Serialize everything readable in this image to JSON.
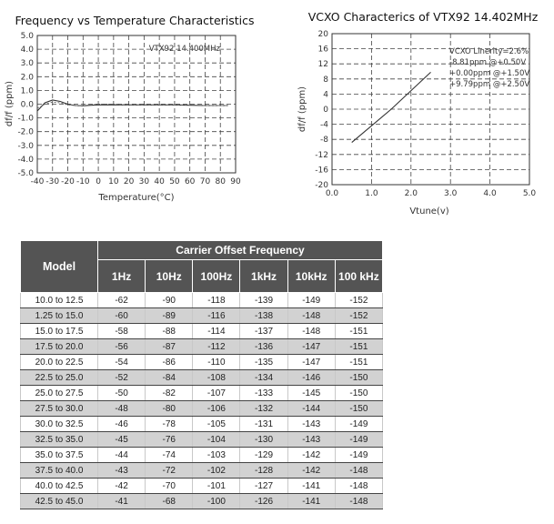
{
  "chart_data": [
    {
      "type": "line",
      "title": "Frequency vs Temperature Characteristics",
      "xlabel": "Temperature(°C)",
      "ylabel": "df/f (ppm)",
      "annotation": "VTX92 14.400MHz",
      "xlim": [
        -40,
        90
      ],
      "ylim": [
        -5.0,
        5.0
      ],
      "xticks": [
        -40,
        -30,
        -20,
        -10,
        0,
        10,
        20,
        30,
        40,
        50,
        60,
        70,
        80,
        90
      ],
      "yticks": [
        "5.0",
        "4.0",
        "3.0",
        "2.0",
        "1.0",
        "0.0",
        "-1.0",
        "-2.0",
        "-3.0",
        "-4.0",
        "-5.0"
      ],
      "grid": true,
      "series": [
        {
          "x": [
            -40,
            -35,
            -30,
            -25,
            -20,
            -15,
            -10,
            -5,
            0,
            10,
            20,
            30,
            40,
            50,
            60,
            70,
            80,
            85
          ],
          "y": [
            -0.5,
            0.1,
            0.3,
            0.2,
            0.0,
            -0.1,
            -0.12,
            -0.08,
            -0.05,
            -0.05,
            -0.05,
            -0.05,
            -0.05,
            -0.05,
            -0.08,
            -0.1,
            -0.1,
            -0.1
          ]
        },
        {
          "x": [
            -40,
            -35,
            -30,
            -25,
            -20,
            -15,
            -10,
            -5,
            0,
            10,
            20,
            30,
            40,
            50,
            60,
            70,
            80,
            85
          ],
          "y": [
            -0.3,
            0.0,
            0.15,
            0.1,
            -0.05,
            -0.1,
            -0.1,
            -0.05,
            0.0,
            0.0,
            -0.05,
            -0.05,
            -0.05,
            -0.05,
            -0.05,
            -0.1,
            -0.1,
            -0.1
          ]
        }
      ]
    },
    {
      "type": "line",
      "title": "VCXO Characterics of VTX92 14.402MHz",
      "xlabel": "Vtune(v)",
      "ylabel": "df/f (ppm)",
      "annotations": [
        "VCXO Linerity=2.6%",
        "-8.81ppm @+0.50V",
        "+0.00ppm @+1.50V",
        "+9.79ppm @+2.50V"
      ],
      "xlim": [
        0,
        5
      ],
      "ylim": [
        -20,
        20
      ],
      "xticks": [
        "0.0",
        "1.0",
        "2.0",
        "3.0",
        "4.0",
        "5.0"
      ],
      "yticks": [
        "20",
        "16",
        "12",
        "8",
        "4",
        "0",
        "-4",
        "-8",
        "-12",
        "-16",
        "-20"
      ],
      "grid": true,
      "series": [
        {
          "x": [
            0.5,
            1.5,
            2.5
          ],
          "y": [
            -8.81,
            0.0,
            9.79
          ]
        }
      ]
    }
  ],
  "table": {
    "model_header": "Model",
    "group_header": "Carrier Offset Frequency",
    "columns": [
      "1Hz",
      "10Hz",
      "100Hz",
      "1kHz",
      "10kHz",
      "100 kHz"
    ],
    "rows": [
      {
        "model": "10.0 to 12.5",
        "values": [
          "-62",
          "-90",
          "-118",
          "-139",
          "-149",
          "-152"
        ]
      },
      {
        "model": "1.25 to 15.0",
        "values": [
          "-60",
          "-89",
          "-116",
          "-138",
          "-148",
          "-152"
        ]
      },
      {
        "model": "15.0 to 17.5",
        "values": [
          "-58",
          "-88",
          "-114",
          "-137",
          "-148",
          "-151"
        ]
      },
      {
        "model": "17.5 to 20.0",
        "values": [
          "-56",
          "-87",
          "-112",
          "-136",
          "-147",
          "-151"
        ]
      },
      {
        "model": "20.0 to 22.5",
        "values": [
          "-54",
          "-86",
          "-110",
          "-135",
          "-147",
          "-151"
        ]
      },
      {
        "model": "22.5 to 25.0",
        "values": [
          "-52",
          "-84",
          "-108",
          "-134",
          "-146",
          "-150"
        ]
      },
      {
        "model": "25.0 to 27.5",
        "values": [
          "-50",
          "-82",
          "-107",
          "-133",
          "-145",
          "-150"
        ]
      },
      {
        "model": "27.5 to 30.0",
        "values": [
          "-48",
          "-80",
          "-106",
          "-132",
          "-144",
          "-150"
        ]
      },
      {
        "model": "30.0 to 32.5",
        "values": [
          "-46",
          "-78",
          "-105",
          "-131",
          "-143",
          "-149"
        ]
      },
      {
        "model": "32.5 to 35.0",
        "values": [
          "-45",
          "-76",
          "-104",
          "-130",
          "-143",
          "-149"
        ]
      },
      {
        "model": "35.0 to 37.5",
        "values": [
          "-44",
          "-74",
          "-103",
          "-129",
          "-142",
          "-149"
        ]
      },
      {
        "model": "37.5 to 40.0",
        "values": [
          "-43",
          "-72",
          "-102",
          "-128",
          "-142",
          "-148"
        ]
      },
      {
        "model": "40.0 to 42.5",
        "values": [
          "-42",
          "-70",
          "-101",
          "-127",
          "-141",
          "-148"
        ]
      },
      {
        "model": "42.5 to 45.0",
        "values": [
          "-41",
          "-68",
          "-100",
          "-126",
          "-141",
          "-148"
        ]
      }
    ]
  }
}
